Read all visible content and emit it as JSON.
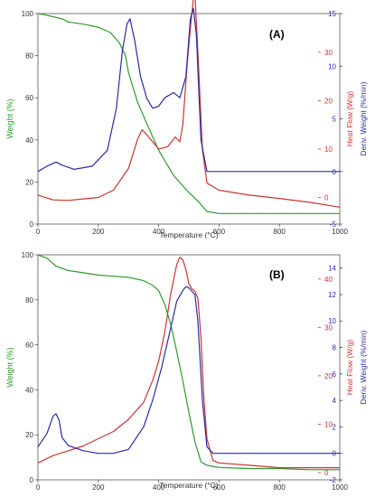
{
  "colors": {
    "weight": "#2e9a2e",
    "heat_flow": "#cc3333",
    "deriv": "#2a2aa8",
    "axis": "#555555"
  },
  "chart_data": [
    {
      "type": "line",
      "panel_label": "(A)",
      "xlabel": "Temperature (°C)",
      "x_ticks": [
        "0",
        "200",
        "400",
        "600",
        "800",
        "1000"
      ],
      "xlim": [
        0,
        1000
      ],
      "grid": false,
      "legend": "none",
      "axes": {
        "left": {
          "label": "Weight (%)",
          "ylim": [
            0,
            100
          ],
          "ticks": [
            "0",
            "20",
            "40",
            "60",
            "80",
            "100"
          ]
        },
        "right_inner": {
          "label": "Heat Flow (W/g)",
          "ylim": [
            -5.5,
            38
          ],
          "ticks": [
            "0",
            "10",
            "20",
            "30"
          ]
        },
        "right_outer": {
          "label": "Deriv. Weight (%/min)",
          "ylim": [
            -5,
            15
          ],
          "ticks": [
            "-5",
            "0",
            "5",
            "10",
            "15"
          ]
        }
      },
      "series": [
        {
          "axis": "left",
          "color_key": "weight",
          "x": [
            0,
            20,
            50,
            80,
            100,
            150,
            200,
            240,
            270,
            290,
            300,
            330,
            360,
            400,
            450,
            500,
            530,
            560,
            600,
            700,
            800,
            900,
            1000
          ],
          "y": [
            100,
            99.5,
            98.5,
            97.5,
            96,
            95,
            93.5,
            91,
            86,
            80,
            72,
            58,
            48,
            35,
            23,
            15,
            11,
            6,
            5,
            5,
            5,
            5,
            5
          ]
        },
        {
          "axis": "right_inner",
          "color_key": "heat_flow",
          "x": [
            0,
            50,
            100,
            150,
            200,
            250,
            300,
            330,
            345,
            360,
            380,
            400,
            430,
            455,
            470,
            480,
            495,
            505,
            515,
            520,
            530,
            545,
            560,
            600,
            700,
            800,
            900,
            1000
          ],
          "y": [
            0.5,
            -0.5,
            -0.6,
            -0.3,
            0,
            1.5,
            6,
            12,
            14,
            13,
            11.5,
            10,
            10.5,
            12.5,
            11.5,
            15,
            28,
            35,
            41,
            42,
            30,
            10,
            3,
            1.5,
            0.5,
            -0.2,
            -1,
            -2
          ]
        },
        {
          "axis": "right_outer",
          "color_key": "deriv",
          "x": [
            0,
            30,
            60,
            80,
            120,
            180,
            230,
            260,
            280,
            295,
            305,
            320,
            340,
            360,
            380,
            400,
            420,
            450,
            470,
            490,
            505,
            515,
            525,
            540,
            560,
            600,
            700,
            800,
            900,
            1000
          ],
          "y": [
            0,
            0.5,
            0.9,
            0.6,
            0.2,
            0.5,
            2,
            6,
            11.5,
            14,
            14.5,
            12.5,
            9,
            7,
            6,
            6.2,
            7,
            7.5,
            7,
            9,
            14.5,
            15.5,
            13,
            3,
            0,
            0,
            0,
            0,
            0,
            0
          ]
        }
      ]
    },
    {
      "type": "line",
      "panel_label": "(B)",
      "xlabel": "Temperature (°C)",
      "x_ticks": [
        "0",
        "200",
        "400",
        "600",
        "800",
        "1000"
      ],
      "xlim": [
        0,
        1000
      ],
      "grid": false,
      "legend": "none",
      "axes": {
        "left": {
          "label": "Weight (%)",
          "ylim": [
            0,
            100
          ],
          "ticks": [
            "0",
            "20",
            "40",
            "60",
            "80",
            "100"
          ]
        },
        "right_inner": {
          "label": "Heat Flow (W/g)",
          "ylim": [
            -1.5,
            45
          ],
          "ticks": [
            "0",
            "10",
            "20",
            "30",
            "40"
          ]
        },
        "right_outer": {
          "label": "Deriv. Weight (%/min)",
          "ylim": [
            -2,
            15
          ],
          "ticks": [
            "-2",
            "0",
            "2",
            "4",
            "6",
            "8",
            "10",
            "12",
            "14"
          ]
        }
      },
      "series": [
        {
          "axis": "left",
          "color_key": "weight",
          "x": [
            0,
            30,
            60,
            100,
            150,
            200,
            250,
            300,
            350,
            380,
            400,
            420,
            440,
            460,
            480,
            500,
            520,
            540,
            560,
            580,
            600,
            700,
            800,
            900,
            1000
          ],
          "y": [
            100,
            98.5,
            95,
            93,
            92,
            91,
            90.5,
            90,
            88.5,
            86.5,
            84,
            78,
            69,
            57,
            44,
            30,
            17,
            8,
            6.5,
            6,
            5.5,
            5,
            5,
            4.5,
            4.5
          ]
        },
        {
          "axis": "right_inner",
          "color_key": "heat_flow",
          "x": [
            0,
            50,
            100,
            150,
            200,
            250,
            300,
            350,
            380,
            400,
            420,
            440,
            460,
            470,
            480,
            490,
            500,
            510,
            520,
            530,
            540,
            550,
            560,
            580,
            600,
            700,
            800,
            900,
            1000
          ],
          "y": [
            2,
            3.5,
            4.5,
            5.5,
            7,
            8.5,
            11,
            14.5,
            19,
            23,
            29,
            37,
            43,
            44.5,
            44,
            42,
            39,
            38,
            37.5,
            36,
            28,
            15,
            7,
            2.5,
            2,
            1.5,
            1,
            1,
            1
          ]
        },
        {
          "axis": "right_outer",
          "color_key": "deriv",
          "x": [
            0,
            30,
            50,
            60,
            70,
            80,
            100,
            150,
            200,
            250,
            300,
            350,
            380,
            410,
            440,
            460,
            480,
            490,
            500,
            520,
            530,
            545,
            560,
            580,
            600,
            700,
            800,
            900,
            1000
          ],
          "y": [
            0.5,
            1.5,
            2.8,
            3,
            2.5,
            1.2,
            0.6,
            0.2,
            0,
            0,
            0.3,
            2,
            4,
            6.5,
            9.5,
            11.5,
            12.3,
            12.6,
            12.5,
            12,
            10,
            4,
            0.5,
            0,
            0,
            0,
            0,
            0,
            0
          ]
        }
      ]
    }
  ]
}
